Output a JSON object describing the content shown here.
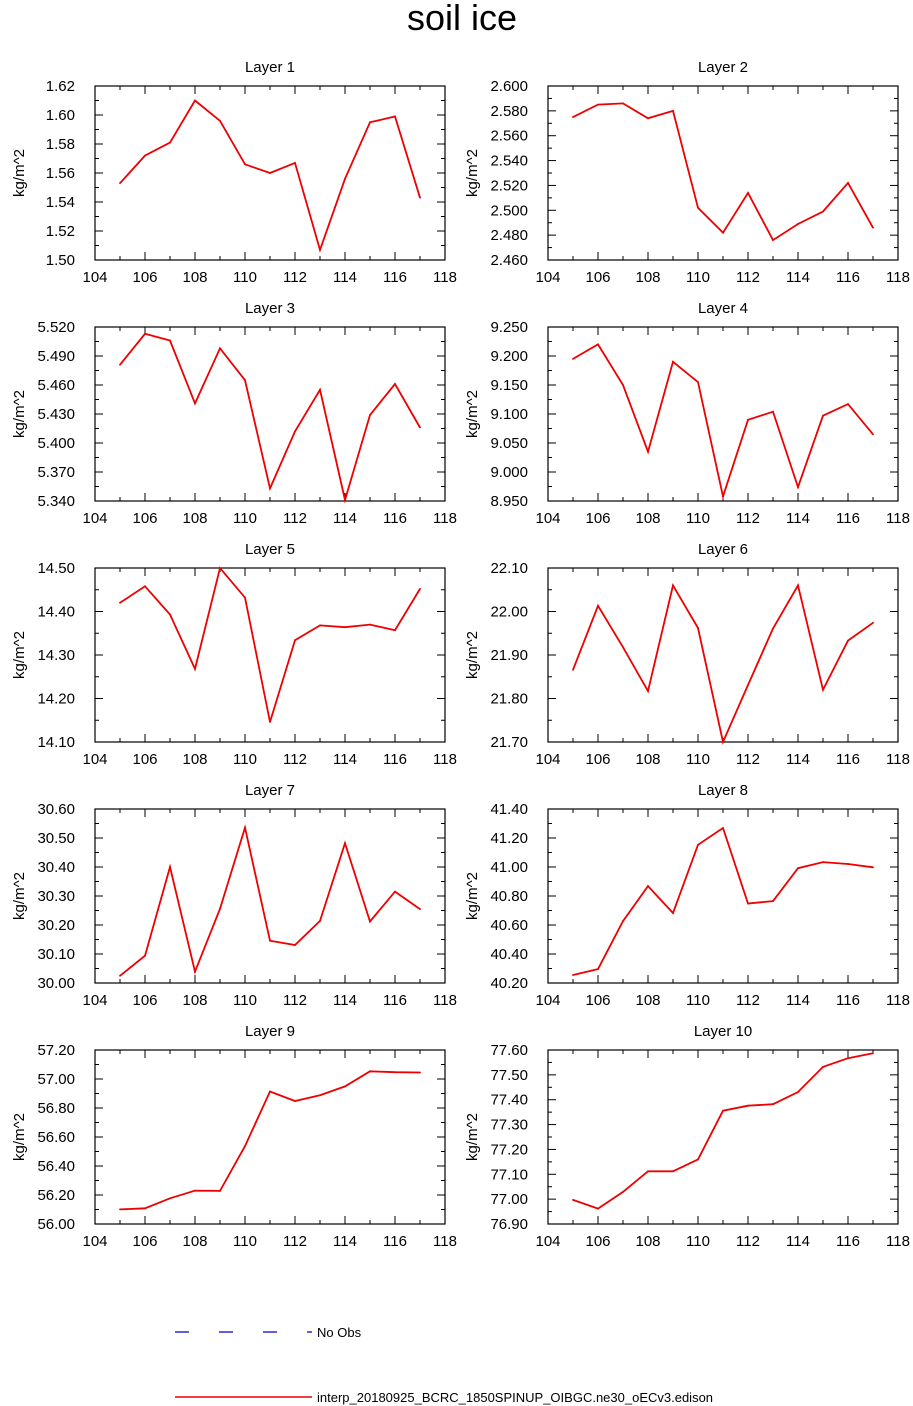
{
  "title": "soil ice",
  "colors": {
    "series": "#ee0000",
    "no_obs": "#0000cc",
    "axis": "#000000"
  },
  "legend": {
    "no_obs_label": "No Obs",
    "model_label": "interp_20180925_BCRC_1850SPINUP_OIBGC.ne30_oECv3.edison"
  },
  "chart_data": [
    {
      "type": "line",
      "title": "Layer 1",
      "ylabel": "kg/m^2",
      "xlim": [
        104,
        118
      ],
      "ylim": [
        1.5,
        1.62
      ],
      "xticks": [
        104,
        106,
        108,
        110,
        112,
        114,
        116,
        118
      ],
      "yticks": [
        "1.50",
        "1.52",
        "1.54",
        "1.56",
        "1.58",
        "1.60",
        "1.62"
      ],
      "x": [
        105,
        106,
        107,
        108,
        109,
        110,
        111,
        112,
        113,
        114,
        115,
        116,
        117
      ],
      "series": [
        {
          "name": "interp_20180925_BCRC_1850SPINUP_OIBGC.ne30_oECv3.edison",
          "values": [
            1.553,
            1.572,
            1.581,
            1.61,
            1.596,
            1.566,
            1.56,
            1.567,
            1.507,
            1.556,
            1.595,
            1.599,
            1.543
          ]
        }
      ]
    },
    {
      "type": "line",
      "title": "Layer 2",
      "ylabel": "kg/m^2",
      "xlim": [
        104,
        118
      ],
      "ylim": [
        2.46,
        2.6
      ],
      "xticks": [
        104,
        106,
        108,
        110,
        112,
        114,
        116,
        118
      ],
      "yticks": [
        "2.460",
        "2.480",
        "2.500",
        "2.520",
        "2.540",
        "2.560",
        "2.580",
        "2.600"
      ],
      "x": [
        105,
        106,
        107,
        108,
        109,
        110,
        111,
        112,
        113,
        114,
        115,
        116,
        117
      ],
      "series": [
        {
          "name": "interp_20180925_BCRC_1850SPINUP_OIBGC.ne30_oECv3.edison",
          "values": [
            2.575,
            2.585,
            2.586,
            2.574,
            2.58,
            2.502,
            2.482,
            2.514,
            2.476,
            2.489,
            2.499,
            2.522,
            2.486
          ]
        }
      ]
    },
    {
      "type": "line",
      "title": "Layer 3",
      "ylabel": "kg/m^2",
      "xlim": [
        104,
        118
      ],
      "ylim": [
        5.34,
        5.52
      ],
      "xticks": [
        104,
        106,
        108,
        110,
        112,
        114,
        116,
        118
      ],
      "yticks": [
        "5.340",
        "5.370",
        "5.400",
        "5.430",
        "5.460",
        "5.490",
        "5.520"
      ],
      "x": [
        105,
        106,
        107,
        108,
        109,
        110,
        111,
        112,
        113,
        114,
        115,
        116,
        117
      ],
      "series": [
        {
          "name": "interp_20180925_BCRC_1850SPINUP_OIBGC.ne30_oECv3.edison",
          "values": [
            5.481,
            5.513,
            5.506,
            5.441,
            5.498,
            5.465,
            5.353,
            5.412,
            5.455,
            5.341,
            5.429,
            5.461,
            5.416
          ]
        }
      ]
    },
    {
      "type": "line",
      "title": "Layer 4",
      "ylabel": "kg/m^2",
      "xlim": [
        104,
        118
      ],
      "ylim": [
        8.95,
        9.25
      ],
      "xticks": [
        104,
        106,
        108,
        110,
        112,
        114,
        116,
        118
      ],
      "yticks": [
        "8.950",
        "9.000",
        "9.050",
        "9.100",
        "9.150",
        "9.200",
        "9.250"
      ],
      "x": [
        105,
        106,
        107,
        108,
        109,
        110,
        111,
        112,
        113,
        114,
        115,
        116,
        117
      ],
      "series": [
        {
          "name": "interp_20180925_BCRC_1850SPINUP_OIBGC.ne30_oECv3.edison",
          "values": [
            9.195,
            9.22,
            9.15,
            9.035,
            9.19,
            9.155,
            8.958,
            9.09,
            9.104,
            8.974,
            9.097,
            9.117,
            9.065
          ]
        }
      ]
    },
    {
      "type": "line",
      "title": "Layer 5",
      "ylabel": "kg/m^2",
      "xlim": [
        104,
        118
      ],
      "ylim": [
        14.1,
        14.5
      ],
      "xticks": [
        104,
        106,
        108,
        110,
        112,
        114,
        116,
        118
      ],
      "yticks": [
        "14.10",
        "14.20",
        "14.30",
        "14.40",
        "14.50"
      ],
      "x": [
        105,
        106,
        107,
        108,
        109,
        110,
        111,
        112,
        113,
        114,
        115,
        116,
        117
      ],
      "series": [
        {
          "name": "interp_20180925_BCRC_1850SPINUP_OIBGC.ne30_oECv3.edison",
          "values": [
            14.42,
            14.458,
            14.393,
            14.268,
            14.5,
            14.432,
            14.146,
            14.334,
            14.368,
            14.364,
            14.37,
            14.357,
            14.452
          ]
        }
      ]
    },
    {
      "type": "line",
      "title": "Layer 6",
      "ylabel": "kg/m^2",
      "xlim": [
        104,
        118
      ],
      "ylim": [
        21.7,
        22.1
      ],
      "xticks": [
        104,
        106,
        108,
        110,
        112,
        114,
        116,
        118
      ],
      "yticks": [
        "21.70",
        "21.80",
        "21.90",
        "22.00",
        "22.10"
      ],
      "x": [
        105,
        106,
        107,
        108,
        109,
        110,
        111,
        112,
        113,
        114,
        115,
        116,
        117
      ],
      "series": [
        {
          "name": "interp_20180925_BCRC_1850SPINUP_OIBGC.ne30_oECv3.edison",
          "values": [
            21.866,
            22.013,
            21.918,
            21.817,
            22.06,
            21.962,
            21.7,
            21.831,
            21.961,
            22.06,
            21.82,
            21.933,
            21.974
          ]
        }
      ]
    },
    {
      "type": "line",
      "title": "Layer 7",
      "ylabel": "kg/m^2",
      "xlim": [
        104,
        118
      ],
      "ylim": [
        30.0,
        30.6
      ],
      "xticks": [
        104,
        106,
        108,
        110,
        112,
        114,
        116,
        118
      ],
      "yticks": [
        "30.00",
        "30.10",
        "30.20",
        "30.30",
        "30.40",
        "30.50",
        "30.60"
      ],
      "x": [
        105,
        106,
        107,
        108,
        109,
        110,
        111,
        112,
        113,
        114,
        115,
        116,
        117
      ],
      "series": [
        {
          "name": "interp_20180925_BCRC_1850SPINUP_OIBGC.ne30_oECv3.edison",
          "values": [
            30.025,
            30.094,
            30.4,
            30.039,
            30.256,
            30.536,
            30.146,
            30.131,
            30.214,
            30.482,
            30.212,
            30.315,
            30.255
          ]
        }
      ]
    },
    {
      "type": "line",
      "title": "Layer 8",
      "ylabel": "kg/m^2",
      "xlim": [
        104,
        118
      ],
      "ylim": [
        40.2,
        41.4
      ],
      "xticks": [
        104,
        106,
        108,
        110,
        112,
        114,
        116,
        118
      ],
      "yticks": [
        "40.20",
        "40.40",
        "40.60",
        "40.80",
        "41.00",
        "41.20",
        "41.40"
      ],
      "x": [
        105,
        106,
        107,
        108,
        109,
        110,
        111,
        112,
        113,
        114,
        115,
        116,
        117
      ],
      "series": [
        {
          "name": "interp_20180925_BCRC_1850SPINUP_OIBGC.ne30_oECv3.edison",
          "values": [
            40.255,
            40.296,
            40.627,
            40.868,
            40.683,
            41.153,
            41.269,
            40.748,
            40.765,
            40.992,
            41.034,
            41.021,
            40.998
          ]
        }
      ]
    },
    {
      "type": "line",
      "title": "Layer 9",
      "ylabel": "kg/m^2",
      "xlim": [
        104,
        118
      ],
      "ylim": [
        56.0,
        57.2
      ],
      "xticks": [
        104,
        106,
        108,
        110,
        112,
        114,
        116,
        118
      ],
      "yticks": [
        "56.00",
        "56.20",
        "56.40",
        "56.60",
        "56.80",
        "57.00",
        "57.20"
      ],
      "x": [
        105,
        106,
        107,
        108,
        109,
        110,
        111,
        112,
        113,
        114,
        115,
        116,
        117
      ],
      "series": [
        {
          "name": "interp_20180925_BCRC_1850SPINUP_OIBGC.ne30_oECv3.edison",
          "values": [
            56.101,
            56.108,
            56.177,
            56.23,
            56.228,
            56.537,
            56.914,
            56.848,
            56.888,
            56.949,
            57.053,
            57.047,
            57.045
          ]
        }
      ]
    },
    {
      "type": "line",
      "title": "Layer 10",
      "ylabel": "kg/m^2",
      "xlim": [
        104,
        118
      ],
      "ylim": [
        76.9,
        77.6
      ],
      "xticks": [
        104,
        106,
        108,
        110,
        112,
        114,
        116,
        118
      ],
      "yticks": [
        "76.90",
        "77.00",
        "77.10",
        "77.20",
        "77.30",
        "77.40",
        "77.50",
        "77.60"
      ],
      "x": [
        105,
        106,
        107,
        108,
        109,
        110,
        111,
        112,
        113,
        114,
        115,
        116,
        117
      ],
      "series": [
        {
          "name": "interp_20180925_BCRC_1850SPINUP_OIBGC.ne30_oECv3.edison",
          "values": [
            76.997,
            76.962,
            77.029,
            77.112,
            77.112,
            77.16,
            77.356,
            77.376,
            77.382,
            77.431,
            77.532,
            77.567,
            77.587
          ]
        }
      ]
    }
  ]
}
